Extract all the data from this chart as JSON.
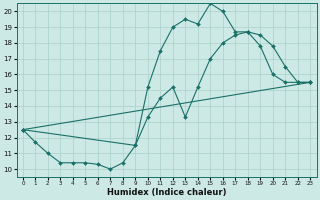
{
  "title": "",
  "xlabel": "Humidex (Indice chaleur)",
  "ylabel": "",
  "background_color": "#cce9e5",
  "grid_color": "#aad0cb",
  "line_color": "#1a7068",
  "xlim": [
    -0.5,
    23.5
  ],
  "ylim": [
    9.5,
    20.5
  ],
  "xticks": [
    0,
    1,
    2,
    3,
    4,
    5,
    6,
    7,
    8,
    9,
    10,
    11,
    12,
    13,
    14,
    15,
    16,
    17,
    18,
    19,
    20,
    21,
    22,
    23
  ],
  "yticks": [
    10,
    11,
    12,
    13,
    14,
    15,
    16,
    17,
    18,
    19,
    20
  ],
  "series1_x": [
    0,
    1,
    2,
    3,
    4,
    5,
    6,
    7,
    8,
    9,
    10,
    11,
    12,
    13,
    14,
    15,
    16,
    17,
    18,
    19,
    20,
    21,
    22,
    23
  ],
  "series1_y": [
    12.5,
    11.7,
    11.0,
    10.4,
    10.4,
    10.4,
    10.3,
    10.0,
    10.4,
    11.5,
    15.2,
    17.5,
    19.0,
    19.5,
    19.2,
    20.5,
    20.0,
    18.7,
    18.7,
    17.8,
    16.0,
    15.5,
    15.5,
    15.5
  ],
  "series2_x": [
    0,
    9,
    10,
    11,
    12,
    13,
    14,
    15,
    16,
    17,
    18,
    19,
    20,
    21,
    22,
    23
  ],
  "series2_y": [
    12.5,
    11.5,
    13.3,
    14.5,
    15.2,
    13.3,
    15.2,
    17.0,
    18.0,
    18.5,
    18.7,
    18.5,
    17.8,
    16.5,
    15.5,
    15.5
  ],
  "series3_x": [
    0,
    23
  ],
  "series3_y": [
    12.5,
    15.5
  ]
}
